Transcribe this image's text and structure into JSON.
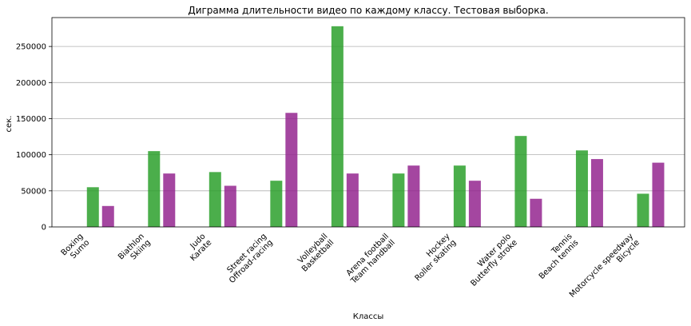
{
  "chart_data": {
    "type": "bar",
    "title": "Диграмма длительности видео по каждому классу. Тестовая выборка.",
    "xlabel": "Классы",
    "ylabel": "сек.",
    "ylim": [
      0,
      290000
    ],
    "yticks": [
      0,
      50000,
      100000,
      150000,
      200000,
      250000
    ],
    "grid": "horizontal",
    "categories": [
      [
        "Boxing",
        "Sumo"
      ],
      [
        "Biathlon",
        "Skiing"
      ],
      [
        "Judo",
        "Karate"
      ],
      [
        "Street racing",
        "Offroad-racing"
      ],
      [
        "Volleyball",
        "Basketball"
      ],
      [
        "Arena football",
        "Team handball"
      ],
      [
        "Hockey",
        "Roller skating"
      ],
      [
        "Water polo",
        "Butterfly stroke"
      ],
      [
        "Tennis",
        "Beach tennis"
      ],
      [
        "Motorcycle speedway",
        "Bicycle"
      ]
    ],
    "series": [
      {
        "values": [
          55000,
          105000,
          76000,
          64000,
          278000,
          74000,
          85000,
          126000,
          106000,
          46000
        ],
        "color": "#2ca02c"
      },
      {
        "values": [
          29000,
          74000,
          57000,
          158000,
          74000,
          85000,
          64000,
          39000,
          94000,
          89000
        ],
        "color": "#94268f"
      }
    ]
  }
}
